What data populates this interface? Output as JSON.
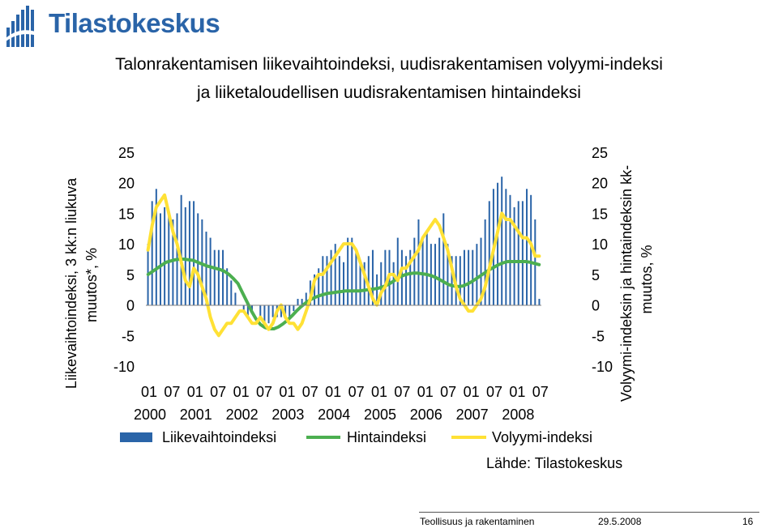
{
  "header": {
    "logo_text": "Tilastokeskus",
    "title_line1": "Talonrakentamisen liikevaihtoindeksi, uudisrakentamisen volyymi-indeksi",
    "title_line2": "ja liiketaloudellisen uudisrakentamisen hintaindeksi"
  },
  "footer": {
    "publication": "Teollisuus ja rakentaminen",
    "date": "29.5.2008",
    "page": "16"
  },
  "colors": {
    "bars": "#2a64a8",
    "hintaindeksi": "#4caf50",
    "volyymi": "#ffe135",
    "logo": "#2a64a8"
  },
  "chart_data": {
    "type": "bar+line",
    "title": "Talonrakentamisen liikevaihtoindeksi, uudisrakentamisen volyymi-indeksi ja liiketaloudellisen uudisrakentamisen hintaindeksi",
    "ylabel_left": "Liikevaihtoindeksi, 3 kk:n liukuva muutos*, %",
    "ylabel_right": "Volyymi-indeksin ja hintaindeksin kk-muutos, %",
    "ylim": [
      -10,
      25
    ],
    "yticks": [
      "25",
      "20",
      "15",
      "10",
      "5",
      "0",
      "-5",
      "-10"
    ],
    "xtick_months": [
      "01",
      "07",
      "01",
      "07",
      "01",
      "07",
      "01",
      "07",
      "01",
      "07",
      "01",
      "07",
      "01",
      "07",
      "01",
      "07",
      "01",
      "07"
    ],
    "xtick_years": [
      "2000",
      "2001",
      "2002",
      "2003",
      "2004",
      "2005",
      "2006",
      "2007",
      "2008"
    ],
    "source": "Lähde: Tilastokeskus",
    "series": [
      {
        "name": "Liikevaihtoindeksi",
        "kind": "bar",
        "axis": "left",
        "values": [
          10,
          17,
          19,
          15,
          16,
          15,
          14,
          15,
          18,
          16,
          17,
          17,
          15,
          14,
          12,
          11,
          9,
          9,
          9,
          6,
          4,
          2,
          0,
          -1,
          -2,
          -1,
          0,
          -2,
          -3,
          -3,
          -2,
          -2,
          -2,
          -2,
          -2,
          -1,
          1,
          1,
          2,
          4,
          5,
          6,
          8,
          8,
          9,
          10,
          8,
          7,
          11,
          11,
          9,
          7,
          7,
          8,
          9,
          5,
          7,
          9,
          9,
          7,
          11,
          9,
          8,
          9,
          11,
          14,
          11,
          12,
          10,
          10,
          11,
          15,
          10,
          8,
          8,
          8,
          9,
          9,
          9,
          10,
          11,
          14,
          17,
          19,
          20,
          21,
          19,
          18,
          16,
          17,
          17,
          19,
          18,
          14,
          1
        ]
      },
      {
        "name": "Hintaindeksi",
        "kind": "line",
        "axis": "right",
        "values": [
          5,
          5.5,
          6,
          6.5,
          7,
          7.2,
          7.4,
          7.5,
          7.5,
          7.4,
          7.3,
          7.0,
          6.7,
          6.4,
          6.2,
          6.0,
          5.8,
          5.5,
          5.0,
          4.3,
          3.5,
          2.0,
          0.5,
          -1.0,
          -2.3,
          -3.2,
          -3.7,
          -3.9,
          -3.9,
          -3.6,
          -3.1,
          -2.5,
          -1.8,
          -1.0,
          -0.3,
          0.3,
          0.8,
          1.2,
          1.5,
          1.7,
          1.9,
          2.0,
          2.1,
          2.2,
          2.3,
          2.3,
          2.3,
          2.3,
          2.4,
          2.5,
          2.6,
          2.7,
          2.9,
          3.2,
          3.6,
          4.1,
          4.6,
          4.9,
          5.1,
          5.2,
          5.2,
          5.1,
          5.0,
          4.8,
          4.5,
          4.1,
          3.7,
          3.3,
          3.1,
          3.0,
          3.1,
          3.4,
          3.8,
          4.3,
          4.8,
          5.3,
          5.8,
          6.2,
          6.6,
          6.9,
          7.1,
          7.1,
          7.1,
          7.1,
          7.1,
          7.0,
          6.8,
          6.6
        ]
      },
      {
        "name": "Volyymi-indeksi",
        "kind": "line",
        "axis": "right",
        "values": [
          9,
          13,
          16,
          17,
          18,
          15,
          12,
          10,
          7,
          4,
          3,
          6,
          5,
          3,
          1,
          -2,
          -4,
          -5,
          -4,
          -3,
          -3,
          -2,
          -1,
          -1,
          -2,
          -3,
          -3,
          -2,
          -3,
          -4,
          -3,
          -1,
          0,
          -2,
          -3,
          -3,
          -4,
          -3,
          -1,
          1,
          4,
          5,
          5,
          6,
          7,
          8,
          9,
          10,
          10,
          10,
          9,
          7,
          5,
          3,
          1,
          0,
          2,
          3,
          5,
          5,
          4,
          6,
          6,
          7,
          8,
          9,
          11,
          12,
          13,
          14,
          13,
          11,
          9,
          6,
          3,
          1,
          0,
          -1,
          -1,
          0,
          1,
          3,
          6,
          9,
          12,
          15,
          14,
          14,
          13,
          12,
          11,
          11,
          10,
          8,
          8
        ]
      }
    ]
  }
}
